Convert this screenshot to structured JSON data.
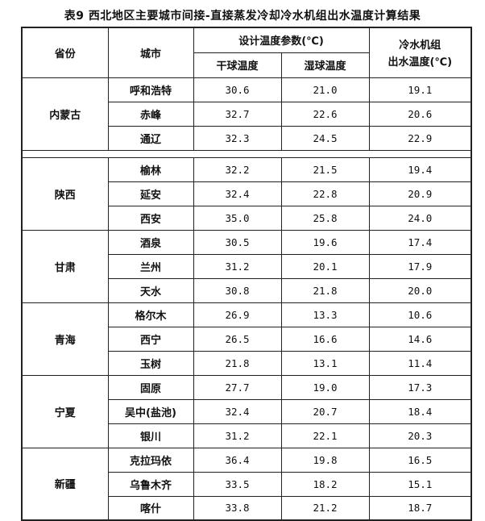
{
  "title": "表9 西北地区主要城市间接-直接蒸发冷却冷水机组出水温度计算结果",
  "headers": {
    "province": "省份",
    "city": "城市",
    "design_params": "设计温度参数(℃)",
    "dry_bulb": "干球温度",
    "wet_bulb": "湿球温度",
    "chiller_line1": "冷水机组",
    "chiller_line2": "出水温度(℃)"
  },
  "groups": [
    {
      "province": "内蒙古",
      "rows": [
        {
          "city": "呼和浩特",
          "dry": "30.6",
          "wet": "21.0",
          "out": "19.1"
        },
        {
          "city": "赤峰",
          "dry": "32.7",
          "wet": "22.6",
          "out": "20.6"
        },
        {
          "city": "通辽",
          "dry": "32.3",
          "wet": "24.5",
          "out": "22.9"
        }
      ]
    },
    {
      "province": "陕西",
      "rows": [
        {
          "city": "榆林",
          "dry": "32.2",
          "wet": "21.5",
          "out": "19.4"
        },
        {
          "city": "延安",
          "dry": "32.4",
          "wet": "22.8",
          "out": "20.9"
        },
        {
          "city": "西安",
          "dry": "35.0",
          "wet": "25.8",
          "out": "24.0"
        }
      ]
    },
    {
      "province": "甘肃",
      "rows": [
        {
          "city": "酒泉",
          "dry": "30.5",
          "wet": "19.6",
          "out": "17.4"
        },
        {
          "city": "兰州",
          "dry": "31.2",
          "wet": "20.1",
          "out": "17.9"
        },
        {
          "city": "天水",
          "dry": "30.8",
          "wet": "21.8",
          "out": "20.0"
        }
      ]
    },
    {
      "province": "青海",
      "rows": [
        {
          "city": "格尔木",
          "dry": "26.9",
          "wet": "13.3",
          "out": "10.6"
        },
        {
          "city": "西宁",
          "dry": "26.5",
          "wet": "16.6",
          "out": "14.6"
        },
        {
          "city": "玉树",
          "dry": "21.8",
          "wet": "13.1",
          "out": "11.4"
        }
      ]
    },
    {
      "province": "宁夏",
      "rows": [
        {
          "city": "固原",
          "dry": "27.7",
          "wet": "19.0",
          "out": "17.3"
        },
        {
          "city": "吴中(盐池)",
          "dry": "32.4",
          "wet": "20.7",
          "out": "18.4"
        },
        {
          "city": "银川",
          "dry": "31.2",
          "wet": "22.1",
          "out": "20.3"
        }
      ]
    },
    {
      "province": "新疆",
      "rows": [
        {
          "city": "克拉玛依",
          "dry": "36.4",
          "wet": "19.8",
          "out": "16.5"
        },
        {
          "city": "乌鲁木齐",
          "dry": "33.5",
          "wet": "18.2",
          "out": "15.1"
        },
        {
          "city": "喀什",
          "dry": "33.8",
          "wet": "21.2",
          "out": "18.7"
        }
      ]
    }
  ]
}
